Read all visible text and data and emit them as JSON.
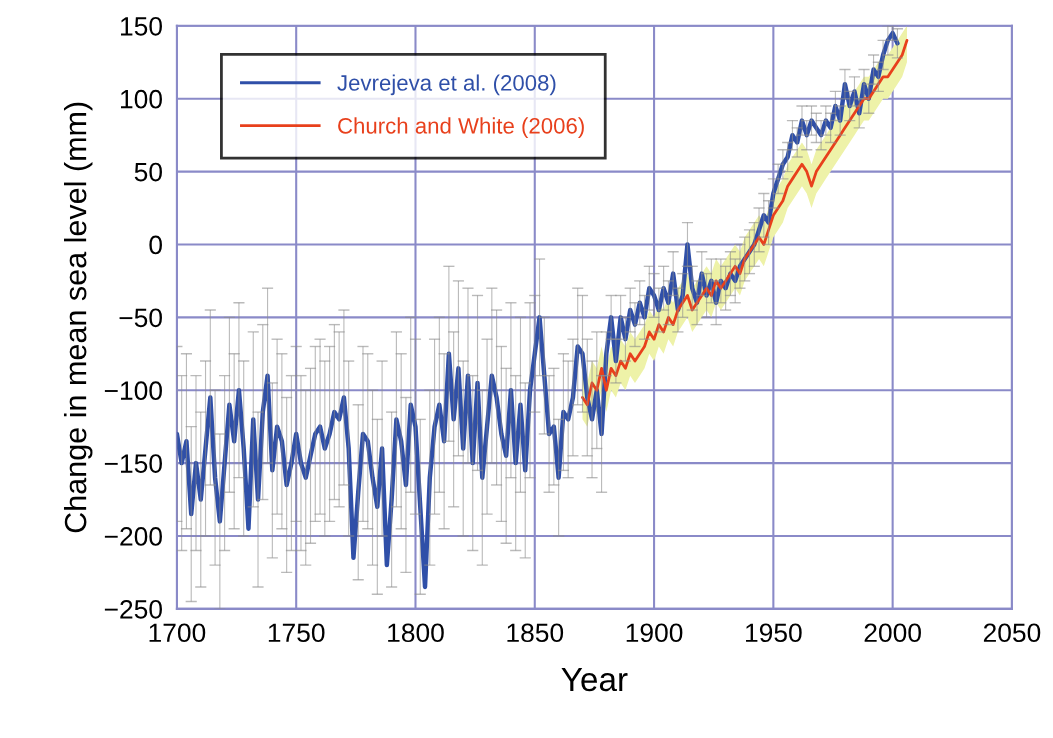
{
  "chart_data": {
    "type": "line",
    "xlabel": "Year",
    "ylabel": "Change in mean sea level (mm)",
    "xlim": [
      1700,
      2050
    ],
    "xticks": [
      1700,
      1750,
      1800,
      1850,
      1900,
      1950,
      2000,
      2050
    ],
    "ylim": [
      -250,
      150
    ],
    "yticks": [
      -250,
      -200,
      -150,
      -100,
      -50,
      0,
      50,
      100,
      150
    ],
    "grid": true,
    "legend": "top left",
    "series": [
      {
        "name": "Jevrejeva et al. (2008)",
        "color": "#2f4fa8",
        "x": [
          1700,
          1702,
          1704,
          1706,
          1708,
          1710,
          1712,
          1714,
          1716,
          1718,
          1720,
          1722,
          1724,
          1726,
          1728,
          1730,
          1732,
          1734,
          1736,
          1738,
          1740,
          1742,
          1744,
          1746,
          1748,
          1750,
          1752,
          1754,
          1756,
          1758,
          1760,
          1762,
          1764,
          1766,
          1768,
          1770,
          1772,
          1774,
          1776,
          1778,
          1780,
          1782,
          1784,
          1786,
          1788,
          1790,
          1792,
          1794,
          1796,
          1798,
          1800,
          1802,
          1804,
          1806,
          1808,
          1810,
          1812,
          1814,
          1816,
          1818,
          1820,
          1822,
          1824,
          1826,
          1828,
          1830,
          1832,
          1834,
          1836,
          1838,
          1840,
          1842,
          1844,
          1846,
          1848,
          1850,
          1852,
          1854,
          1856,
          1858,
          1860,
          1862,
          1864,
          1866,
          1868,
          1870,
          1872,
          1874,
          1876,
          1878,
          1880,
          1882,
          1884,
          1886,
          1888,
          1890,
          1892,
          1894,
          1896,
          1898,
          1900,
          1902,
          1904,
          1906,
          1908,
          1910,
          1912,
          1914,
          1916,
          1918,
          1920,
          1922,
          1924,
          1926,
          1928,
          1930,
          1932,
          1934,
          1936,
          1938,
          1940,
          1942,
          1944,
          1946,
          1948,
          1950,
          1952,
          1954,
          1956,
          1958,
          1960,
          1962,
          1964,
          1966,
          1968,
          1970,
          1972,
          1974,
          1976,
          1978,
          1980,
          1982,
          1984,
          1986,
          1988,
          1990,
          1992,
          1994,
          1996,
          1998,
          2000,
          2002
        ],
        "values": [
          -130,
          -150,
          -135,
          -185,
          -150,
          -175,
          -140,
          -105,
          -160,
          -190,
          -150,
          -110,
          -135,
          -100,
          -140,
          -195,
          -120,
          -175,
          -115,
          -90,
          -155,
          -125,
          -135,
          -165,
          -150,
          -130,
          -150,
          -160,
          -145,
          -130,
          -125,
          -140,
          -130,
          -115,
          -120,
          -105,
          -140,
          -215,
          -170,
          -130,
          -135,
          -160,
          -180,
          -140,
          -220,
          -175,
          -120,
          -135,
          -165,
          -110,
          -125,
          -180,
          -235,
          -160,
          -125,
          -110,
          -135,
          -75,
          -120,
          -85,
          -140,
          -90,
          -150,
          -95,
          -160,
          -125,
          -90,
          -105,
          -130,
          -145,
          -100,
          -150,
          -110,
          -155,
          -100,
          -75,
          -50,
          -90,
          -130,
          -125,
          -160,
          -115,
          -120,
          -105,
          -70,
          -75,
          -105,
          -120,
          -100,
          -130,
          -75,
          -50,
          -80,
          -50,
          -65,
          -45,
          -55,
          -40,
          -50,
          -30,
          -35,
          -45,
          -30,
          -40,
          -20,
          -45,
          -35,
          0,
          -30,
          -40,
          -20,
          -35,
          -25,
          -40,
          -25,
          -30,
          -20,
          -25,
          -15,
          -10,
          -5,
          0,
          10,
          20,
          15,
          35,
          45,
          55,
          60,
          75,
          70,
          85,
          75,
          85,
          80,
          75,
          85,
          80,
          95,
          85,
          110,
          95,
          105,
          90,
          110,
          100,
          120,
          115,
          130,
          140,
          145,
          138
        ],
        "errors": [
          60,
          60,
          60,
          60,
          60,
          60,
          60,
          60,
          60,
          60,
          60,
          60,
          60,
          60,
          60,
          null,
          60,
          60,
          60,
          60,
          60,
          60,
          60,
          60,
          60,
          60,
          60,
          60,
          60,
          60,
          60,
          60,
          60,
          60,
          60,
          60,
          60,
          null,
          60,
          60,
          60,
          60,
          60,
          60,
          null,
          60,
          60,
          60,
          60,
          60,
          60,
          60,
          null,
          60,
          60,
          60,
          60,
          60,
          60,
          60,
          60,
          60,
          60,
          60,
          60,
          60,
          60,
          60,
          60,
          60,
          60,
          60,
          60,
          60,
          60,
          40,
          40,
          40,
          40,
          40,
          40,
          40,
          40,
          40,
          40,
          40,
          40,
          40,
          40,
          40,
          15,
          15,
          15,
          15,
          15,
          15,
          15,
          15,
          15,
          15,
          15,
          15,
          15,
          15,
          15,
          15,
          15,
          15,
          15,
          15,
          15,
          15,
          15,
          15,
          15,
          15,
          15,
          15,
          15,
          15,
          15,
          15,
          15,
          15,
          15,
          10,
          10,
          10,
          10,
          10,
          10,
          10,
          10,
          10,
          10,
          10,
          10,
          10,
          10,
          10,
          10,
          10,
          10,
          10,
          10,
          10,
          10,
          10,
          10,
          10,
          5,
          10
        ]
      },
      {
        "name": "Church and White (2006)",
        "color": "#e8401c",
        "x": [
          1870,
          1872,
          1874,
          1876,
          1878,
          1880,
          1882,
          1884,
          1886,
          1888,
          1890,
          1892,
          1894,
          1896,
          1898,
          1900,
          1902,
          1904,
          1906,
          1908,
          1910,
          1912,
          1914,
          1916,
          1918,
          1920,
          1922,
          1924,
          1926,
          1928,
          1930,
          1932,
          1934,
          1936,
          1938,
          1940,
          1942,
          1944,
          1946,
          1948,
          1950,
          1952,
          1954,
          1956,
          1958,
          1960,
          1962,
          1964,
          1966,
          1968,
          1970,
          1972,
          1974,
          1976,
          1978,
          1980,
          1982,
          1984,
          1986,
          1988,
          1990,
          1992,
          1994,
          1996,
          1998,
          2000,
          2002,
          2004,
          2006
        ],
        "values": [
          -105,
          -110,
          -95,
          -100,
          -85,
          -100,
          -85,
          -90,
          -80,
          -85,
          -75,
          -80,
          -75,
          -70,
          -60,
          -65,
          -55,
          -60,
          -50,
          -55,
          -45,
          -40,
          -35,
          -45,
          -40,
          -35,
          -30,
          -35,
          -25,
          -30,
          -25,
          -20,
          -15,
          -20,
          -10,
          -5,
          0,
          5,
          0,
          10,
          20,
          25,
          30,
          40,
          45,
          50,
          55,
          50,
          40,
          50,
          55,
          60,
          65,
          70,
          75,
          80,
          85,
          90,
          95,
          100,
          100,
          105,
          110,
          115,
          115,
          120,
          125,
          130,
          140
        ],
        "lower": [
          -120,
          -125,
          -110,
          -115,
          -100,
          -115,
          -100,
          -105,
          -95,
          -100,
          -90,
          -95,
          -90,
          -85,
          -75,
          -80,
          -70,
          -75,
          -65,
          -70,
          -60,
          -55,
          -50,
          -60,
          -55,
          -50,
          -45,
          -50,
          -40,
          -45,
          -40,
          -35,
          -30,
          -35,
          -25,
          -20,
          -15,
          -10,
          -15,
          -5,
          5,
          10,
          15,
          25,
          30,
          35,
          40,
          35,
          25,
          35,
          40,
          45,
          50,
          55,
          60,
          65,
          70,
          75,
          80,
          85,
          85,
          90,
          95,
          100,
          100,
          105,
          110,
          115,
          125
        ],
        "upper": [
          -90,
          -95,
          -80,
          -85,
          -70,
          -85,
          -70,
          -75,
          -65,
          -70,
          -60,
          -65,
          -60,
          -55,
          -45,
          -50,
          -40,
          -45,
          -35,
          -40,
          -30,
          -25,
          -20,
          -30,
          -25,
          -20,
          -15,
          -20,
          -10,
          -15,
          -10,
          -5,
          0,
          -5,
          5,
          10,
          15,
          20,
          15,
          25,
          35,
          40,
          45,
          55,
          60,
          65,
          70,
          65,
          55,
          65,
          70,
          75,
          80,
          85,
          90,
          95,
          100,
          105,
          110,
          115,
          115,
          120,
          125,
          130,
          130,
          135,
          140,
          145,
          150
        ]
      }
    ]
  }
}
